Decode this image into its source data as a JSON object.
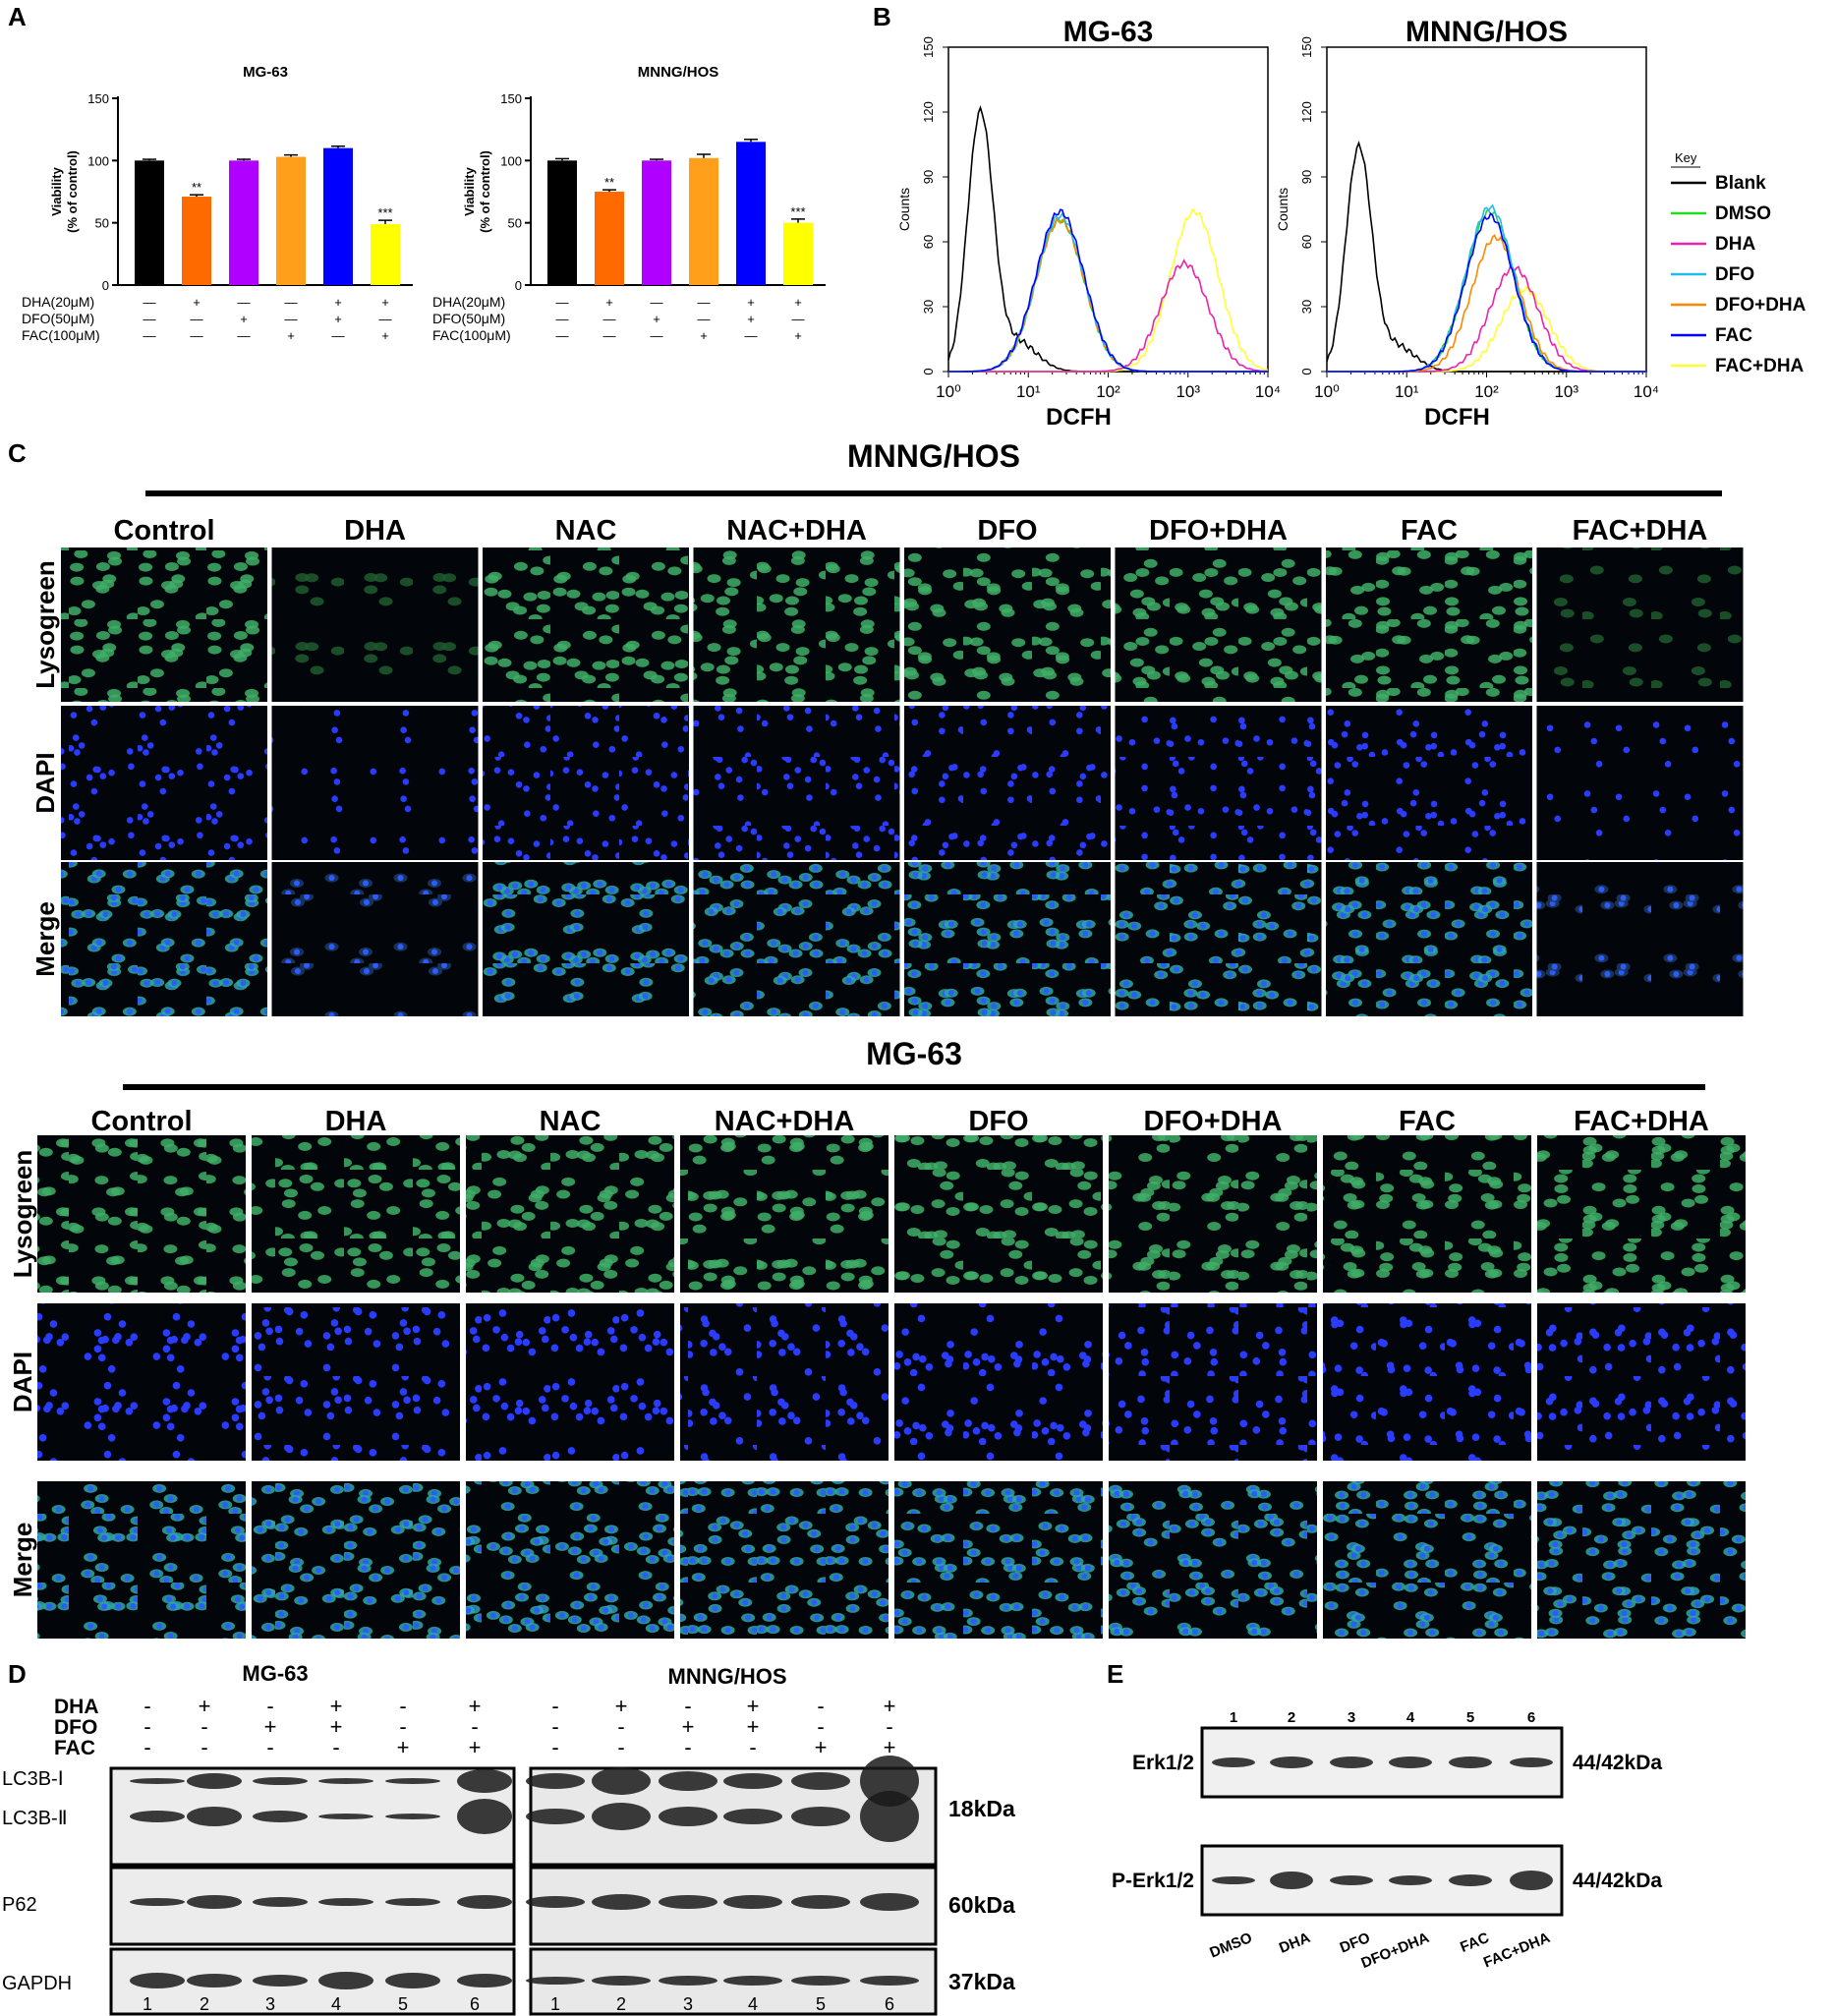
{
  "panels": {
    "a": "A",
    "b": "B",
    "c": "C",
    "d": "D",
    "e": "E"
  },
  "panelA": {
    "charts": [
      {
        "title": "MG-63"
      },
      {
        "title": "MNNG/HOS"
      }
    ],
    "treatments": [
      "DHA(20μM)",
      "DFO(50μM)",
      "FAC(100μM)"
    ],
    "signs": [
      [
        "—",
        "+",
        "—",
        "—",
        "+",
        "+"
      ],
      [
        "—",
        "—",
        "+",
        "—",
        "+",
        "—"
      ],
      [
        "—",
        "—",
        "—",
        "+",
        "—",
        "+"
      ]
    ],
    "colors": [
      "#000000",
      "#ff6a00",
      "#b000ff",
      "#ff9f1a",
      "#0000ff",
      "#ffff00"
    ]
  },
  "chart_data": [
    {
      "type": "bar",
      "title": "MG-63",
      "ylabel": "Viability (% of control)",
      "ylim": [
        0,
        150
      ],
      "yticks": [
        0,
        50,
        100,
        150
      ],
      "values": [
        100,
        71,
        100,
        103,
        110,
        49
      ],
      "errors": [
        1,
        1.5,
        1,
        1.5,
        1.5,
        3
      ],
      "annotations": [
        "",
        "**",
        "",
        "",
        "",
        "***"
      ]
    },
    {
      "type": "bar",
      "title": "MNNG/HOS",
      "ylabel": "Viability (% of control)",
      "ylim": [
        0,
        150
      ],
      "yticks": [
        0,
        50,
        100,
        150
      ],
      "values": [
        100,
        75,
        100,
        102,
        115,
        50
      ],
      "errors": [
        1.5,
        1.5,
        1,
        3,
        2,
        3
      ],
      "annotations": [
        "",
        "**",
        "",
        "",
        "",
        "***"
      ]
    },
    {
      "type": "line",
      "title": "MG-63",
      "xlabel": "DCFH",
      "ylabel": "Counts",
      "xscale": "log",
      "xlim": [
        1,
        10000
      ],
      "ylim": [
        0,
        150
      ],
      "yticks": [
        0,
        30,
        60,
        90,
        120,
        150
      ],
      "xticks": [
        "10⁰",
        "10¹",
        "10²",
        "10³",
        "10⁴"
      ],
      "series": [
        {
          "name": "Blank",
          "peak_x": 2.5,
          "peak_y": 118
        },
        {
          "name": "DMSO",
          "peak_x": 25,
          "peak_y": 70
        },
        {
          "name": "DHA",
          "peak_x": 900,
          "peak_y": 50
        },
        {
          "name": "DFO",
          "peak_x": 25,
          "peak_y": 72
        },
        {
          "name": "DFO+DHA",
          "peak_x": 25,
          "peak_y": 70
        },
        {
          "name": "FAC",
          "peak_x": 25,
          "peak_y": 74
        },
        {
          "name": "FAC+DHA",
          "peak_x": 1200,
          "peak_y": 74
        }
      ]
    },
    {
      "type": "line",
      "title": "MNNG/HOS",
      "xlabel": "DCFH",
      "ylabel": "Counts",
      "xscale": "log",
      "xlim": [
        1,
        10000
      ],
      "ylim": [
        0,
        150
      ],
      "yticks": [
        0,
        30,
        60,
        90,
        120,
        150
      ],
      "xticks": [
        "10⁰",
        "10¹",
        "10²",
        "10³",
        "10⁴"
      ],
      "series": [
        {
          "name": "Blank",
          "peak_x": 2.5,
          "peak_y": 102
        },
        {
          "name": "DMSO",
          "peak_x": 110,
          "peak_y": 74
        },
        {
          "name": "DHA",
          "peak_x": 220,
          "peak_y": 48
        },
        {
          "name": "DFO",
          "peak_x": 110,
          "peak_y": 76
        },
        {
          "name": "DFO+DHA",
          "peak_x": 130,
          "peak_y": 62
        },
        {
          "name": "FAC",
          "peak_x": 110,
          "peak_y": 72
        },
        {
          "name": "FAC+DHA",
          "peak_x": 300,
          "peak_y": 38
        }
      ]
    }
  ],
  "panelB": {
    "legend_title": "Key",
    "legend": [
      {
        "name": "Blank",
        "color": "#000000"
      },
      {
        "name": "DMSO",
        "color": "#22dd22"
      },
      {
        "name": "DHA",
        "color": "#ee22aa"
      },
      {
        "name": "DFO",
        "color": "#22bbee"
      },
      {
        "name": "DFO+DHA",
        "color": "#ff8800"
      },
      {
        "name": "FAC",
        "color": "#0000ff"
      },
      {
        "name": "FAC+DHA",
        "color": "#ffff33"
      }
    ]
  },
  "panelC": {
    "blocks": [
      {
        "title": "MNNG/HOS"
      },
      {
        "title": "MG-63"
      }
    ],
    "columns": [
      "Control",
      "DHA",
      "NAC",
      "NAC+DHA",
      "DFO",
      "DFO+DHA",
      "FAC",
      "FAC+DHA"
    ],
    "rows": [
      "Lysogreen",
      "DAPI",
      "Merge"
    ]
  },
  "panelD": {
    "titles": [
      "MG-63",
      "MNNG/HOS"
    ],
    "rowlabels": [
      "DHA",
      "DFO",
      "FAC"
    ],
    "signs": [
      [
        "-",
        "+",
        "-",
        "+",
        "-",
        "+"
      ],
      [
        "-",
        "-",
        "+",
        "+",
        "-",
        "-"
      ],
      [
        "-",
        "-",
        "-",
        "-",
        "+",
        "+"
      ]
    ],
    "blotlabels": [
      "LC3B-Ⅰ",
      "LC3B-Ⅱ",
      "P62",
      "GAPDH"
    ],
    "sizes": [
      "18kDa",
      "60kDa",
      "37kDa"
    ],
    "lanes": [
      "1",
      "2",
      "3",
      "4",
      "5",
      "6"
    ]
  },
  "panelE": {
    "lanes": [
      "1",
      "2",
      "3",
      "4",
      "5",
      "6"
    ],
    "blots": [
      "Erk1/2",
      "P-Erk1/2"
    ],
    "sizes": [
      "44/42kDa",
      "44/42kDa"
    ],
    "groups": [
      "DMSO",
      "DHA",
      "DFO",
      "DFO+DHA",
      "FAC",
      "FAC+DHA"
    ]
  }
}
